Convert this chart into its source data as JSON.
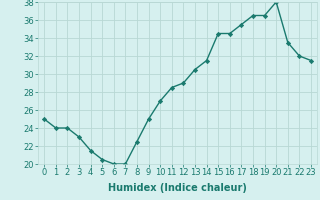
{
  "x": [
    0,
    1,
    2,
    3,
    4,
    5,
    6,
    7,
    8,
    9,
    10,
    11,
    12,
    13,
    14,
    15,
    16,
    17,
    18,
    19,
    20,
    21,
    22,
    23
  ],
  "y": [
    25,
    24,
    24,
    23,
    21.5,
    20.5,
    20,
    20,
    22.5,
    25,
    27,
    28.5,
    29,
    30.5,
    31.5,
    34.5,
    34.5,
    35.5,
    36.5,
    36.5,
    38,
    33.5,
    32,
    31.5
  ],
  "line_color": "#1a7a6e",
  "marker": "D",
  "marker_size": 2.2,
  "bg_color": "#d6f0ef",
  "grid_color": "#b8d8d4",
  "xlabel": "Humidex (Indice chaleur)",
  "ylim": [
    20,
    38
  ],
  "xlim_min": -0.5,
  "xlim_max": 23.5,
  "yticks": [
    20,
    22,
    24,
    26,
    28,
    30,
    32,
    34,
    36,
    38
  ],
  "xticks": [
    0,
    1,
    2,
    3,
    4,
    5,
    6,
    7,
    8,
    9,
    10,
    11,
    12,
    13,
    14,
    15,
    16,
    17,
    18,
    19,
    20,
    21,
    22,
    23
  ],
  "xlabel_fontsize": 7,
  "tick_fontsize": 6,
  "line_width": 1.0
}
